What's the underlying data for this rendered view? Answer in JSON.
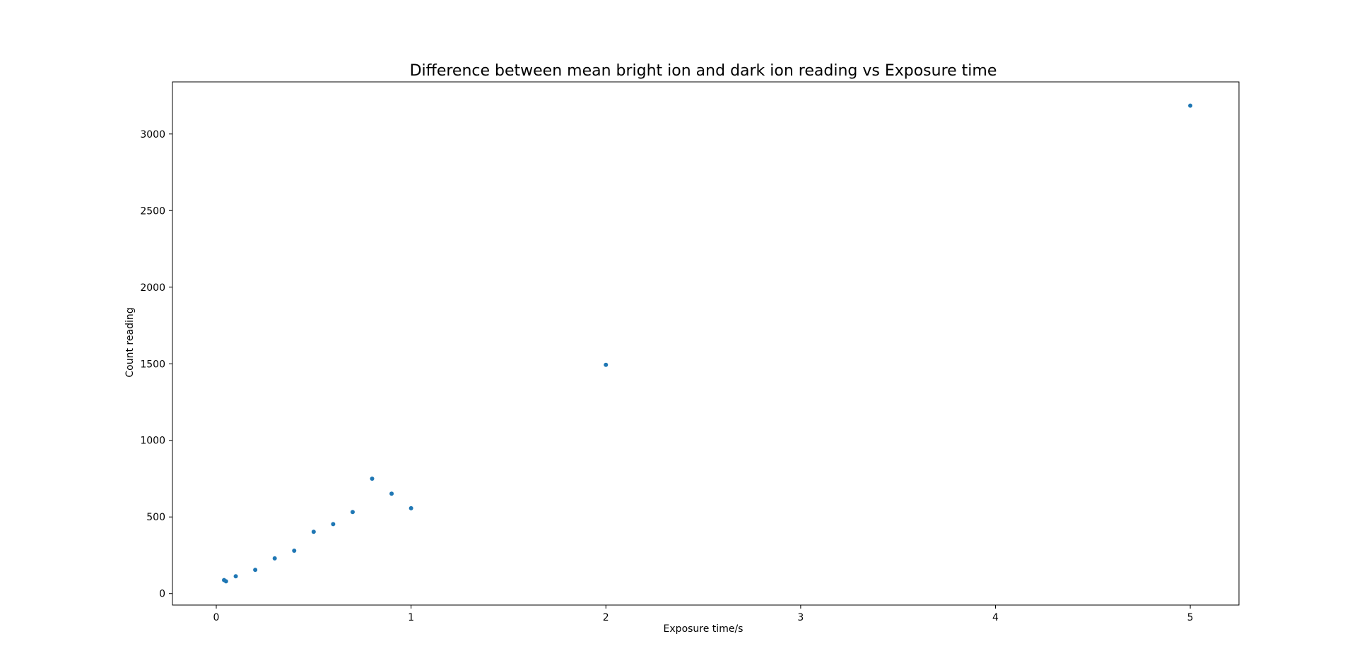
{
  "chart_data": {
    "type": "scatter",
    "title": "Difference between mean bright ion and dark ion reading vs Exposure time",
    "xlabel": "Exposure time/s",
    "ylabel": "Count reading",
    "xlim": [
      -0.225,
      5.25
    ],
    "ylim": [
      -75,
      3340
    ],
    "xticks": [
      0,
      1,
      2,
      3,
      4,
      5
    ],
    "xtick_labels": [
      "0",
      "1",
      "2",
      "3",
      "4",
      "5"
    ],
    "yticks": [
      0,
      500,
      1000,
      1500,
      2000,
      2500,
      3000
    ],
    "ytick_labels": [
      "0",
      "500",
      "1000",
      "1500",
      "2000",
      "2500",
      "3000"
    ],
    "grid": false,
    "legend": false,
    "marker_color": "#1f77b4",
    "points": [
      {
        "x": 0.04,
        "y": 88
      },
      {
        "x": 0.05,
        "y": 80
      },
      {
        "x": 0.1,
        "y": 113
      },
      {
        "x": 0.2,
        "y": 155
      },
      {
        "x": 0.3,
        "y": 230
      },
      {
        "x": 0.4,
        "y": 280
      },
      {
        "x": 0.5,
        "y": 403
      },
      {
        "x": 0.6,
        "y": 453
      },
      {
        "x": 0.7,
        "y": 532
      },
      {
        "x": 0.8,
        "y": 750
      },
      {
        "x": 0.9,
        "y": 652
      },
      {
        "x": 1.0,
        "y": 557
      },
      {
        "x": 2.0,
        "y": 1493
      },
      {
        "x": 5.0,
        "y": 3185
      }
    ]
  }
}
